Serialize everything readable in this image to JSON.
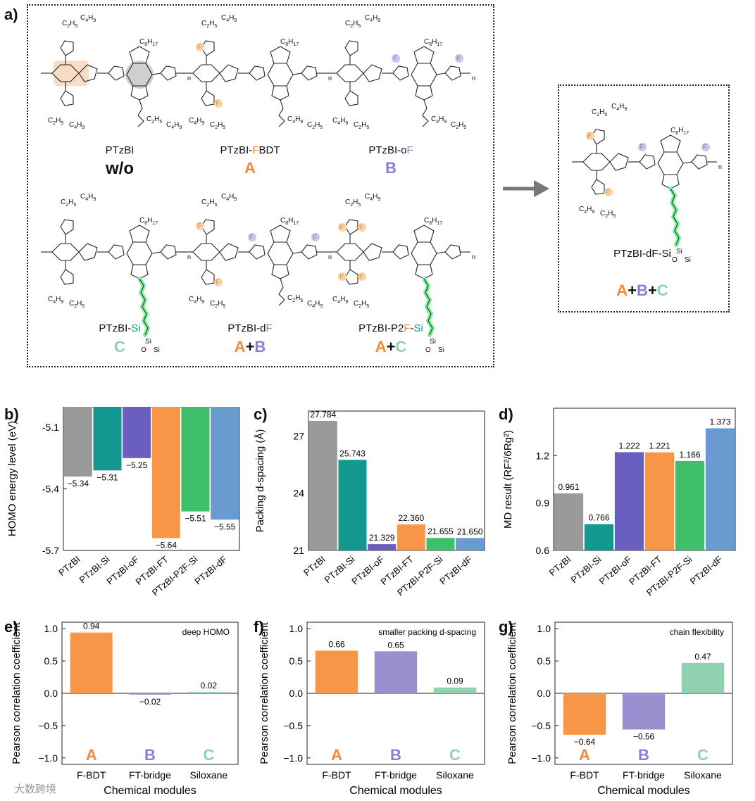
{
  "panel_letters": [
    "a)",
    "b)",
    "c)",
    "d)",
    "e)",
    "f)",
    "g)"
  ],
  "colors": {
    "A": "#f08a3c",
    "B": "#8a7fd6",
    "C": "#8fd1b0",
    "gray": "#9a9a9a",
    "teal": "#13978f",
    "purple": "#6a5fbf",
    "orange": "#f79646",
    "green": "#3fbf6b",
    "blue": "#6a9bd0"
  },
  "molecules": [
    {
      "name_parts": [
        "PTzBI"
      ],
      "module_parts": [
        "w/o"
      ],
      "substituents": [
        "C2H5",
        "C4H9",
        "C8H17",
        "C2H5",
        "C4H9",
        "C4H9",
        "C2H5"
      ]
    },
    {
      "name_parts": [
        "PTzBI-",
        "F",
        "BDT"
      ],
      "module_parts": [
        "A"
      ],
      "substituents": [
        "C2H5",
        "C4H9",
        "F",
        "C8H17",
        "F",
        "C4H9",
        "C2H5",
        "C2H5",
        "C4H9"
      ]
    },
    {
      "name_parts": [
        "PTzBI-o",
        "F"
      ],
      "module_parts": [
        "B"
      ],
      "substituents": [
        "C2H5",
        "C4H9",
        "C8H17",
        "F",
        "F",
        "C4H9",
        "C2H5",
        "C2H5",
        "C4H9"
      ]
    },
    {
      "name_parts": [
        "PTzBI-",
        "Si"
      ],
      "module_parts": [
        "C"
      ],
      "substituents": [
        "C2H5",
        "C4H9",
        "C8H17",
        "C4H9",
        "C2H5",
        "Si",
        "O",
        "Si"
      ]
    },
    {
      "name_parts": [
        "PTzBI-d",
        "F"
      ],
      "module_parts": [
        "A",
        "+",
        "B"
      ],
      "substituents": [
        "C4H9",
        "C2H5",
        "F",
        "C8H17",
        "F",
        "F",
        "F",
        "C2H5",
        "C4H9",
        "C4H9",
        "C2H5"
      ]
    },
    {
      "name_parts": [
        "PTzBI-P2",
        "F",
        "-",
        "Si"
      ],
      "module_parts": [
        "A",
        "+",
        "C"
      ],
      "substituents": [
        "C4H9",
        "C2H5",
        "F",
        "F",
        "C8H17",
        "F",
        "F",
        "C2H5",
        "C4H9",
        "Si",
        "O",
        "Si"
      ]
    },
    {
      "name_parts": [
        "PTzBI-dF-Si"
      ],
      "module_parts": [
        "A",
        "+",
        "B",
        "+",
        "C"
      ],
      "substituents": [
        "C2H5",
        "C4H9",
        "F",
        "C8H17",
        "F",
        "F",
        "F",
        "C4H9",
        "C2H5",
        "Si",
        "O",
        "Si"
      ]
    }
  ],
  "polymer_index": "n",
  "chart_data": [
    {
      "id": "b",
      "type": "bar",
      "categories": [
        "PTzBI",
        "PTzBI-Si",
        "PTzBI-oF",
        "PTzBI-FT",
        "PTzBI-P2F-Si",
        "PTzBI-dF"
      ],
      "values": [
        -5.34,
        -5.31,
        -5.25,
        -5.64,
        -5.51,
        -5.55
      ],
      "labels": [
        "−5.34",
        "−5.31",
        "−5.25",
        "−5.64",
        "−5.51",
        "−5.55"
      ],
      "ylabel": "HOMO energy level (eV)",
      "ylim": [
        -5.7,
        -5.0
      ],
      "yticks": [
        -5.1,
        -5.4,
        -5.7
      ],
      "ytick_labels": [
        "-5.1",
        "-5.4",
        "-5.7"
      ],
      "baseline": -5.0
    },
    {
      "id": "c",
      "type": "bar",
      "categories": [
        "PTzBI",
        "PTzBI-Si",
        "PTzBI-oF",
        "PTzBI-FT",
        "PTzBI-P2F-Si",
        "PTzBI-dF"
      ],
      "values": [
        27.784,
        25.743,
        21.329,
        22.36,
        21.655,
        21.65
      ],
      "labels": [
        "27.784",
        "25.743",
        "21.329",
        "22.360",
        "21.655",
        "21.650"
      ],
      "ylabel": "Packing d-spacing (Å)",
      "ylim": [
        21,
        28.3
      ],
      "yticks": [
        21,
        24,
        27
      ],
      "ytick_labels": [
        "21",
        "24",
        "27"
      ],
      "baseline": 21
    },
    {
      "id": "d",
      "type": "bar",
      "categories": [
        "PTzBI",
        "PTzBI-Si",
        "PTzBI-oF",
        "PTzBI-FT",
        "PTzBI-P2F-Si",
        "PTzBI-dF"
      ],
      "values": [
        0.961,
        0.766,
        1.222,
        1.221,
        1.166,
        1.373
      ],
      "labels": [
        "0.961",
        "0.766",
        "1.222",
        "1.221",
        "1.166",
        "1.373"
      ],
      "ylabel": "MD result (RF²/6Rg²)",
      "ylim": [
        0.6,
        1.5
      ],
      "yticks": [
        0.6,
        0.9,
        1.2
      ],
      "ytick_labels": [
        "0.6",
        "0.9",
        "1.2"
      ],
      "baseline": 0.6
    },
    {
      "id": "e",
      "type": "bar",
      "categories": [
        "F-BDT",
        "FT-bridge",
        "Siloxane"
      ],
      "module_letters": [
        "A",
        "B",
        "C"
      ],
      "values": [
        0.94,
        -0.02,
        0.02
      ],
      "labels": [
        "0.94",
        "−0.02",
        "0.02"
      ],
      "annotation": "deep HOMO",
      "xlabel": "Chemical modules",
      "ylabel": "Pearson correlation coefficient",
      "ylim": [
        -1.1,
        1.1
      ],
      "yticks": [
        -1.0,
        -0.5,
        0.0,
        0.5,
        1.0
      ],
      "ytick_labels": [
        "−1.0",
        "−0.5",
        "0.0",
        "0.5",
        "1.0"
      ],
      "baseline": 0
    },
    {
      "id": "f",
      "type": "bar",
      "categories": [
        "F-BDT",
        "FT-bridge",
        "Siloxane"
      ],
      "module_letters": [
        "A",
        "B",
        "C"
      ],
      "values": [
        0.66,
        0.65,
        0.09
      ],
      "labels": [
        "0.66",
        "0.65",
        "0.09"
      ],
      "annotation": "smaller packing d-spacing",
      "xlabel": "Chemical modules",
      "ylabel": "Pearson correlation coefficient",
      "ylim": [
        -1.1,
        1.1
      ],
      "yticks": [
        -1.0,
        -0.5,
        0.0,
        0.5,
        1.0
      ],
      "ytick_labels": [
        "−1.0",
        "−0.5",
        "0.0",
        "0.5",
        "1.0"
      ],
      "baseline": 0
    },
    {
      "id": "g",
      "type": "bar",
      "categories": [
        "F-BDT",
        "FT-bridge",
        "Siloxane"
      ],
      "module_letters": [
        "A",
        "B",
        "C"
      ],
      "values": [
        -0.64,
        -0.56,
        0.47
      ],
      "labels": [
        "−0.64",
        "−0.56",
        "0.47"
      ],
      "annotation": "chain flexibility",
      "xlabel": "Chemical modules",
      "ylabel": "Pearson correlation coefficient",
      "ylim": [
        -1.1,
        1.1
      ],
      "yticks": [
        -1.0,
        -0.5,
        0.0,
        0.5,
        1.0
      ],
      "ytick_labels": [
        "−1.0",
        "−0.5",
        "0.0",
        "0.5",
        "1.0"
      ],
      "baseline": 0
    }
  ],
  "watermark": "大数跨境"
}
